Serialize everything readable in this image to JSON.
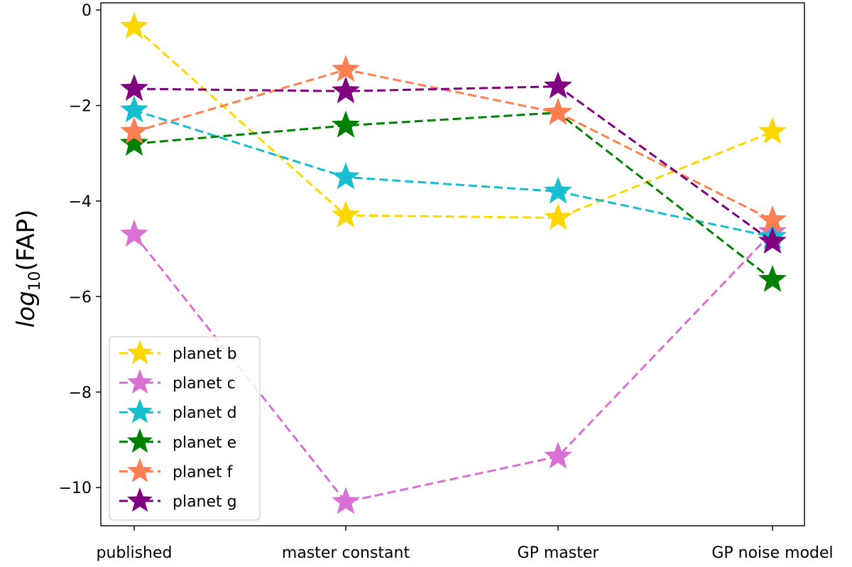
{
  "chart_data": {
    "type": "line",
    "title": "",
    "xlabel": "",
    "ylabel_main": "log",
    "ylabel_sub": "10",
    "ylabel_tail": "(FAP)",
    "categories": [
      "published",
      "master constant",
      "GP master",
      "GP noise model"
    ],
    "ylim": [
      -10.8,
      0.15
    ],
    "yticks": [
      0,
      -2,
      -4,
      -6,
      -8,
      -10
    ],
    "ytick_labels": [
      "0",
      "−2",
      "−4",
      "−6",
      "−8",
      "−10"
    ],
    "legend_position": "lower-left",
    "marker": "star",
    "line_style": "dashed",
    "series": [
      {
        "name": "planet b",
        "color": "#FFD700",
        "values": [
          -0.35,
          -4.3,
          -4.35,
          -2.55
        ]
      },
      {
        "name": "planet c",
        "color": "#DA70D6",
        "values": [
          -4.7,
          -10.3,
          -9.35,
          -4.65
        ]
      },
      {
        "name": "planet d",
        "color": "#17BECF",
        "values": [
          -2.1,
          -3.5,
          -3.8,
          -4.75
        ]
      },
      {
        "name": "planet e",
        "color": "#008000",
        "values": [
          -2.8,
          -2.42,
          -2.15,
          -5.65
        ]
      },
      {
        "name": "planet f",
        "color": "#FF7F50",
        "values": [
          -2.55,
          -1.25,
          -2.15,
          -4.4
        ]
      },
      {
        "name": "planet g",
        "color": "#800080",
        "values": [
          -1.65,
          -1.7,
          -1.6,
          -4.85
        ]
      }
    ]
  }
}
